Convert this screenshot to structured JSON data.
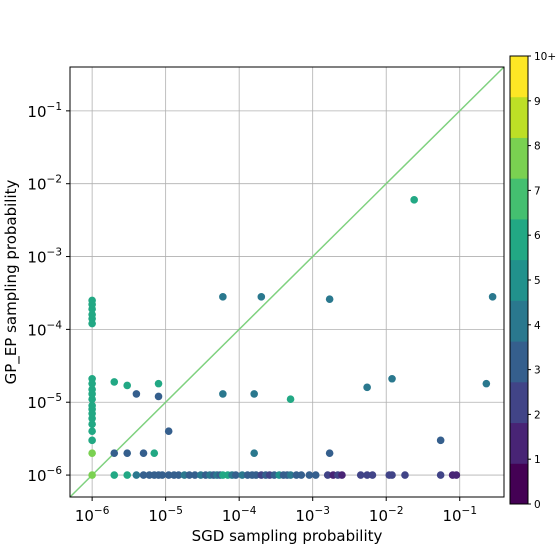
{
  "chart_data": {
    "type": "scatter",
    "title": "",
    "xlabel": "SGD sampling probability",
    "ylabel": "GP_EP sampling probability",
    "xscale": "log",
    "yscale": "log",
    "xlim": [
      5e-07,
      0.4
    ],
    "ylim": [
      5e-07,
      0.4
    ],
    "grid": true,
    "x_ticks": [
      {
        "base": "10",
        "exp": "−6"
      },
      {
        "base": "10",
        "exp": "−5"
      },
      {
        "base": "10",
        "exp": "−4"
      },
      {
        "base": "10",
        "exp": "−3"
      },
      {
        "base": "10",
        "exp": "−2"
      },
      {
        "base": "10",
        "exp": "−1"
      }
    ],
    "y_ticks": [
      {
        "base": "10",
        "exp": "−6"
      },
      {
        "base": "10",
        "exp": "−5"
      },
      {
        "base": "10",
        "exp": "−4"
      },
      {
        "base": "10",
        "exp": "−3"
      },
      {
        "base": "10",
        "exp": "−2"
      },
      {
        "base": "10",
        "exp": "−1"
      }
    ],
    "x_tick_values": [
      1e-06,
      1e-05,
      0.0001,
      0.001,
      0.01,
      0.1
    ],
    "y_tick_values": [
      1e-06,
      1e-05,
      0.0001,
      0.001,
      0.01,
      0.1
    ],
    "reference_line": {
      "type": "y=x",
      "color": "#7fd17f"
    },
    "colorbar": {
      "colormap": "viridis",
      "levels": 11,
      "tick_labels": [
        "0",
        "1",
        "2",
        "3",
        "4",
        "5",
        "6",
        "7",
        "8",
        "9",
        "10+"
      ],
      "colors": [
        "#440154",
        "#482475",
        "#414487",
        "#355f8d",
        "#2a788e",
        "#21918c",
        "#22a884",
        "#44bf70",
        "#7ad151",
        "#bddf26",
        "#fde725"
      ]
    },
    "points": [
      [
        1e-06,
        0.00025,
        6
      ],
      [
        1e-06,
        0.00022,
        6
      ],
      [
        1e-06,
        0.00019,
        6
      ],
      [
        1e-06,
        0.00016,
        6
      ],
      [
        1e-06,
        0.00014,
        6
      ],
      [
        1e-06,
        0.00012,
        6
      ],
      [
        1e-06,
        2.1e-05,
        6
      ],
      [
        1e-06,
        1.8e-05,
        6
      ],
      [
        1e-06,
        1.5e-05,
        6
      ],
      [
        1e-06,
        1.3e-05,
        6
      ],
      [
        1e-06,
        1.1e-05,
        6
      ],
      [
        1e-06,
        9e-06,
        6
      ],
      [
        1e-06,
        8e-06,
        6
      ],
      [
        1e-06,
        7e-06,
        6
      ],
      [
        1e-06,
        6e-06,
        6
      ],
      [
        1e-06,
        5e-06,
        6
      ],
      [
        1e-06,
        4e-06,
        6
      ],
      [
        1e-06,
        3e-06,
        6
      ],
      [
        1e-06,
        2e-06,
        8
      ],
      [
        1e-06,
        1e-06,
        8
      ],
      [
        2e-06,
        1.9e-05,
        6
      ],
      [
        3e-06,
        1.7e-05,
        6
      ],
      [
        4e-06,
        1.3e-05,
        3
      ],
      [
        8e-06,
        1.8e-05,
        6
      ],
      [
        8e-06,
        1.2e-05,
        3
      ],
      [
        2e-06,
        2e-06,
        3
      ],
      [
        3e-06,
        2e-06,
        3
      ],
      [
        5e-06,
        2e-06,
        3
      ],
      [
        7e-06,
        2e-06,
        6
      ],
      [
        1.1e-05,
        4e-06,
        3
      ],
      [
        6e-05,
        0.00028,
        4
      ],
      [
        0.0002,
        0.00028,
        4
      ],
      [
        0.0017,
        0.00026,
        4
      ],
      [
        0.28,
        0.00028,
        4
      ],
      [
        6e-05,
        1.3e-05,
        4
      ],
      [
        0.00016,
        1.3e-05,
        4
      ],
      [
        0.0005,
        1.1e-05,
        6
      ],
      [
        0.0055,
        1.6e-05,
        4
      ],
      [
        0.012,
        2.1e-05,
        4
      ],
      [
        0.23,
        1.8e-05,
        4
      ],
      [
        0.024,
        0.006,
        6
      ],
      [
        0.00016,
        2e-06,
        4
      ],
      [
        0.0017,
        2e-06,
        3
      ],
      [
        0.055,
        3e-06,
        3
      ],
      [
        2e-06,
        1e-06,
        6
      ],
      [
        3e-06,
        1e-06,
        6
      ],
      [
        4e-06,
        1e-06,
        4
      ],
      [
        5e-06,
        1e-06,
        3
      ],
      [
        6e-06,
        1e-06,
        3
      ],
      [
        7e-06,
        1e-06,
        3
      ],
      [
        8e-06,
        1e-06,
        3
      ],
      [
        9e-06,
        1e-06,
        3
      ],
      [
        1.1e-05,
        1e-06,
        3
      ],
      [
        1.3e-05,
        1e-06,
        3
      ],
      [
        1.5e-05,
        1e-06,
        3
      ],
      [
        1.8e-05,
        1e-06,
        4
      ],
      [
        2.1e-05,
        1e-06,
        3
      ],
      [
        2.5e-05,
        1e-06,
        3
      ],
      [
        3e-05,
        1e-06,
        4
      ],
      [
        3.5e-05,
        1e-06,
        3
      ],
      [
        4e-05,
        1e-06,
        4
      ],
      [
        4.5e-05,
        1e-06,
        3
      ],
      [
        5e-05,
        1e-06,
        4
      ],
      [
        5.5e-05,
        1e-06,
        3
      ],
      [
        6e-05,
        1e-06,
        6
      ],
      [
        7e-05,
        1e-06,
        6
      ],
      [
        8e-05,
        1e-06,
        4
      ],
      [
        9e-05,
        1e-06,
        3
      ],
      [
        0.00011,
        1e-06,
        4
      ],
      [
        0.00013,
        1e-06,
        3
      ],
      [
        0.00015,
        1e-06,
        3
      ],
      [
        0.00017,
        1e-06,
        3
      ],
      [
        0.0002,
        1e-06,
        2
      ],
      [
        0.00023,
        1e-06,
        3
      ],
      [
        0.00026,
        1e-06,
        2
      ],
      [
        0.0003,
        1e-06,
        3
      ],
      [
        0.00035,
        1e-06,
        5
      ],
      [
        0.0004,
        1e-06,
        3
      ],
      [
        0.00045,
        1e-06,
        3
      ],
      [
        0.0005,
        1e-06,
        4
      ],
      [
        0.0006,
        1e-06,
        3
      ],
      [
        0.0007,
        1e-06,
        3
      ],
      [
        0.0009,
        1e-06,
        3
      ],
      [
        0.0011,
        1e-06,
        3
      ],
      [
        0.0016,
        1e-06,
        2
      ],
      [
        0.0019,
        1e-06,
        1
      ],
      [
        0.0022,
        1e-06,
        2
      ],
      [
        0.0025,
        1e-06,
        1
      ],
      [
        0.0045,
        1e-06,
        2
      ],
      [
        0.0055,
        1e-06,
        2
      ],
      [
        0.0065,
        1e-06,
        2
      ],
      [
        0.011,
        1e-06,
        2
      ],
      [
        0.012,
        1e-06,
        2
      ],
      [
        0.018,
        1e-06,
        2
      ],
      [
        0.055,
        1e-06,
        2
      ],
      [
        0.08,
        1e-06,
        1
      ],
      [
        0.09,
        1e-06,
        1
      ]
    ]
  }
}
